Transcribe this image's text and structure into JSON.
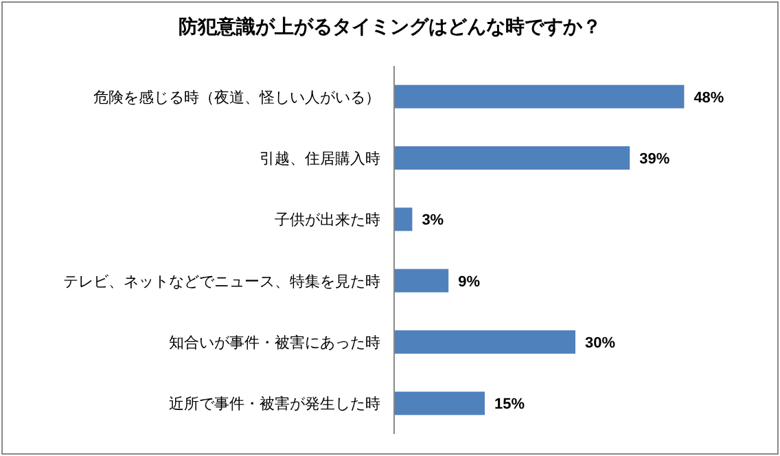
{
  "chart_data": {
    "type": "bar",
    "orientation": "horizontal",
    "title": "防犯意識が上がるタイミングはどんな時ですか？",
    "categories": [
      "危険を感じる時（夜道、怪しい人がいる）",
      "引越、住居購入時",
      "子供が出来た時",
      "テレビ、ネットなどでニュース、特集を見た時",
      "知合いが事件・被害にあった時",
      "近所で事件・被害が発生した時"
    ],
    "values": [
      48,
      39,
      3,
      9,
      30,
      15
    ],
    "value_labels": [
      "48%",
      "39%",
      "3%",
      "9%",
      "30%",
      "15%"
    ],
    "color": "#4f81bd"
  }
}
